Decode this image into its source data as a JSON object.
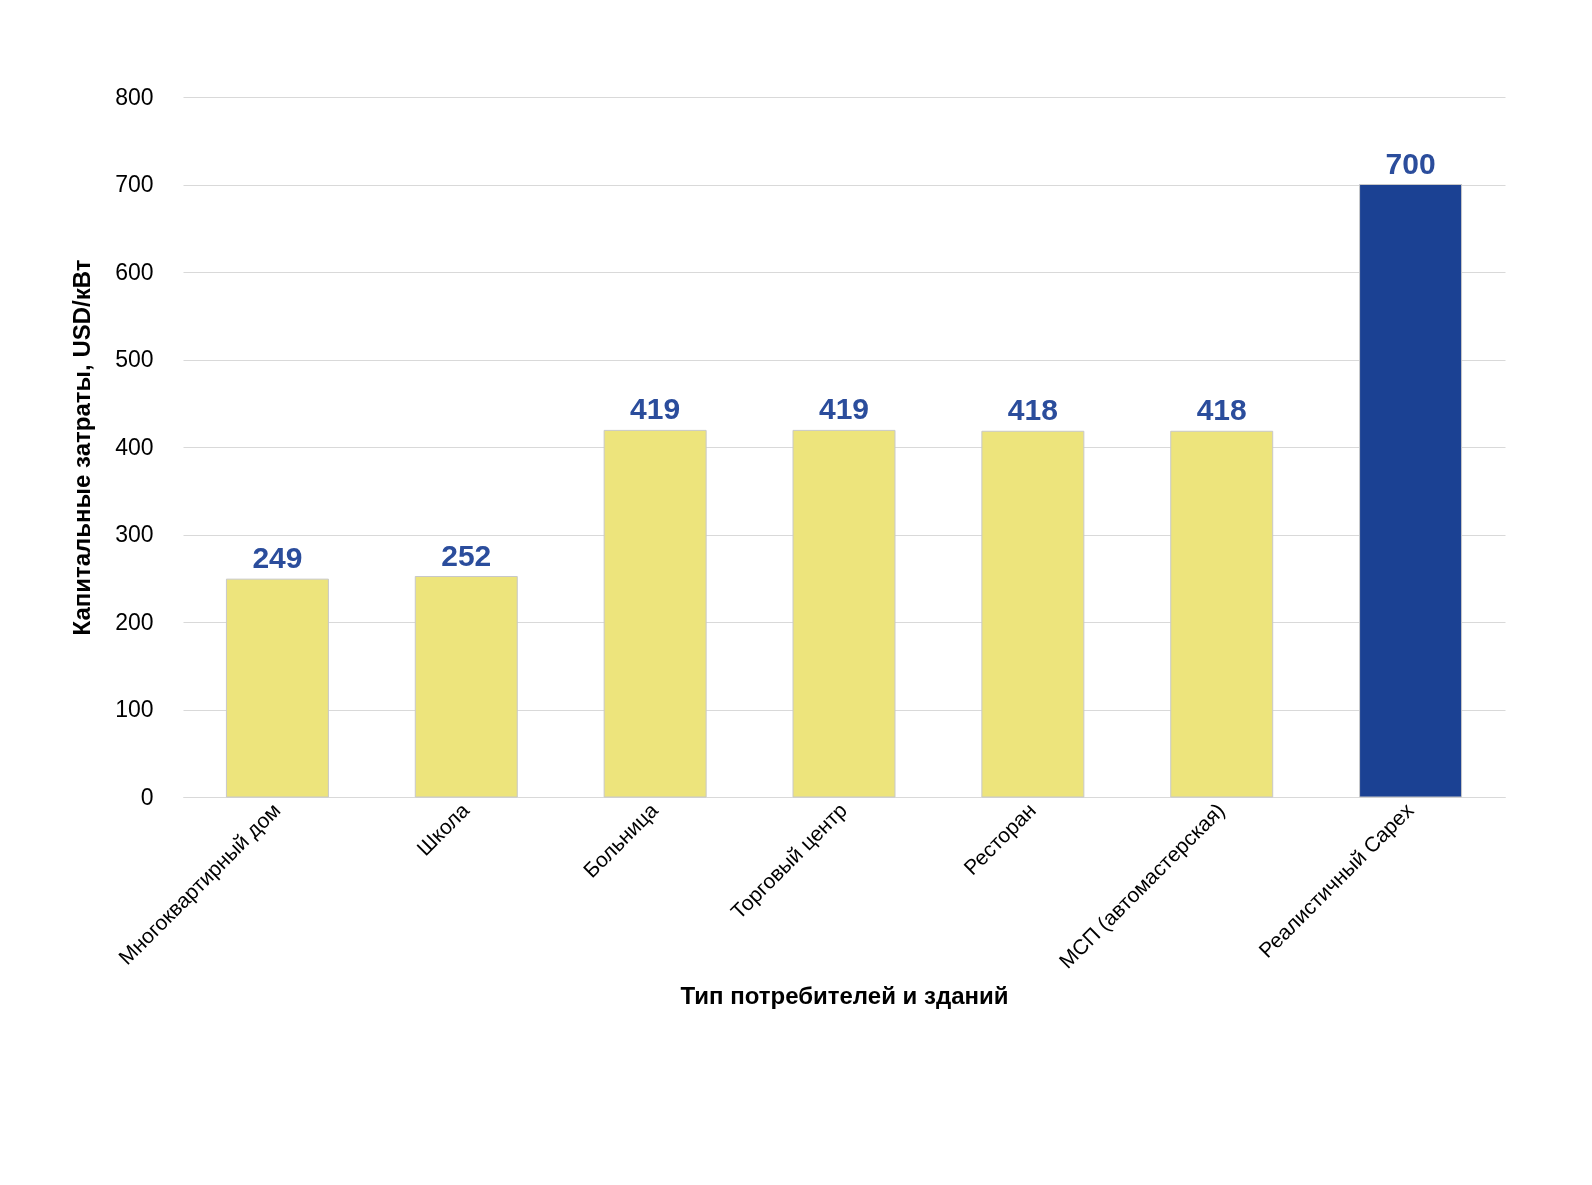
{
  "chart_data": {
    "type": "bar",
    "xlabel": "Тип потребителей и зданий",
    "ylabel": "Капитальные затраты, USD/кВт",
    "categories": [
      "Многоквартирный дом",
      "Школа",
      "Больница",
      "Торговый центр",
      "Ресторан",
      "МСП (автомастерская)",
      "Реалистичный Capex"
    ],
    "values": [
      249,
      252,
      419,
      419,
      418,
      418,
      700
    ],
    "colors": [
      "#ede47c",
      "#ede47c",
      "#ede47c",
      "#ede47c",
      "#ede47c",
      "#ede47c",
      "#1b4193"
    ],
    "ylim": [
      0,
      800
    ],
    "yticks": [
      0,
      100,
      200,
      300,
      400,
      500,
      600,
      700,
      800
    ],
    "grid": "y",
    "data_labels": true
  }
}
